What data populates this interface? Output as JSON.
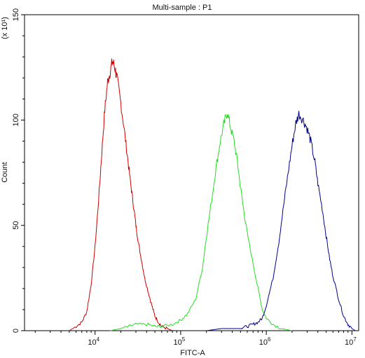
{
  "chart_data": {
    "type": "line",
    "title": "Multi-sample : P1",
    "xlabel": "FITC-A",
    "ylabel": "Count",
    "y_multiplier": "(x 10¹)",
    "x_scale": "log",
    "xlim": [
      1500,
      12000000
    ],
    "ylim": [
      0,
      150
    ],
    "x_ticks": [
      {
        "value": 10000,
        "base": "10",
        "exp": "4"
      },
      {
        "value": 100000,
        "base": "10",
        "exp": "5"
      },
      {
        "value": 1000000,
        "base": "10",
        "exp": "6"
      },
      {
        "value": 10000000,
        "base": "10",
        "exp": "7"
      }
    ],
    "y_ticks": [
      0,
      50,
      100,
      150
    ],
    "grid": false,
    "series": [
      {
        "color": "#cc0000",
        "points": [
          [
            5000,
            0
          ],
          [
            6000,
            2
          ],
          [
            7000,
            4
          ],
          [
            8000,
            9
          ],
          [
            9000,
            22
          ],
          [
            10000,
            40
          ],
          [
            11000,
            62
          ],
          [
            12000,
            85
          ],
          [
            13000,
            105
          ],
          [
            14000,
            118
          ],
          [
            15000,
            123
          ],
          [
            16000,
            128
          ],
          [
            17000,
            125
          ],
          [
            18000,
            120
          ],
          [
            20000,
            108
          ],
          [
            22000,
            95
          ],
          [
            24000,
            82
          ],
          [
            26000,
            70
          ],
          [
            28000,
            60
          ],
          [
            30000,
            50
          ],
          [
            32000,
            42
          ],
          [
            35000,
            33
          ],
          [
            38000,
            25
          ],
          [
            42000,
            18
          ],
          [
            46000,
            12
          ],
          [
            50000,
            7
          ],
          [
            55000,
            4
          ],
          [
            60000,
            2
          ],
          [
            70000,
            1
          ],
          [
            80000,
            0
          ]
        ]
      },
      {
        "color": "#22dd22",
        "points": [
          [
            15000,
            0
          ],
          [
            20000,
            1
          ],
          [
            25000,
            2
          ],
          [
            30000,
            3
          ],
          [
            40000,
            3
          ],
          [
            50000,
            2
          ],
          [
            60000,
            2
          ],
          [
            80000,
            3
          ],
          [
            100000,
            5
          ],
          [
            120000,
            8
          ],
          [
            150000,
            15
          ],
          [
            180000,
            30
          ],
          [
            200000,
            45
          ],
          [
            230000,
            62
          ],
          [
            260000,
            78
          ],
          [
            290000,
            90
          ],
          [
            320000,
            98
          ],
          [
            350000,
            104
          ],
          [
            380000,
            97
          ],
          [
            420000,
            90
          ],
          [
            460000,
            80
          ],
          [
            500000,
            68
          ],
          [
            550000,
            56
          ],
          [
            600000,
            46
          ],
          [
            700000,
            32
          ],
          [
            800000,
            20
          ],
          [
            900000,
            10
          ],
          [
            1000000,
            6
          ],
          [
            1200000,
            3
          ],
          [
            1500000,
            1
          ],
          [
            2000000,
            0
          ]
        ]
      },
      {
        "color": "#000088",
        "points": [
          [
            200000,
            0
          ],
          [
            300000,
            1
          ],
          [
            500000,
            1
          ],
          [
            600000,
            2
          ],
          [
            700000,
            3
          ],
          [
            800000,
            4
          ],
          [
            900000,
            6
          ],
          [
            1000000,
            12
          ],
          [
            1200000,
            25
          ],
          [
            1400000,
            42
          ],
          [
            1600000,
            60
          ],
          [
            1800000,
            75
          ],
          [
            2000000,
            88
          ],
          [
            2200000,
            98
          ],
          [
            2400000,
            103
          ],
          [
            2700000,
            100
          ],
          [
            3000000,
            96
          ],
          [
            3300000,
            90
          ],
          [
            3700000,
            80
          ],
          [
            4000000,
            70
          ],
          [
            4500000,
            58
          ],
          [
            5000000,
            45
          ],
          [
            5500000,
            34
          ],
          [
            6000000,
            26
          ],
          [
            7000000,
            15
          ],
          [
            8000000,
            7
          ],
          [
            9000000,
            3
          ],
          [
            10000000,
            1
          ],
          [
            11000000,
            0
          ]
        ]
      }
    ]
  }
}
